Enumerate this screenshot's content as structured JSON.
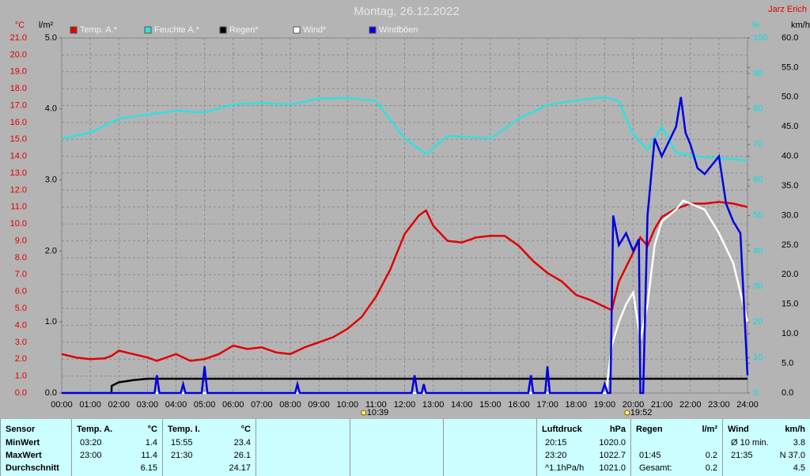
{
  "chart_data": {
    "type": "line",
    "title": "Montag, 26.12.2022",
    "author": "Jarz Erich",
    "xlim": [
      0,
      24
    ],
    "xticks": [
      {
        "value": 0,
        "label": "00:00"
      },
      {
        "value": 1,
        "label": "01:00"
      },
      {
        "value": 2,
        "label": "02:00"
      },
      {
        "value": 3,
        "label": "03:00"
      },
      {
        "value": 4,
        "label": "04:00"
      },
      {
        "value": 5,
        "label": "05:00"
      },
      {
        "value": 6,
        "label": "06:00"
      },
      {
        "value": 7,
        "label": "07:00"
      },
      {
        "value": 8,
        "label": "08:00"
      },
      {
        "value": 9,
        "label": "09:00"
      },
      {
        "value": 10,
        "label": "10:00"
      },
      {
        "value": 11,
        "label": "11:00"
      },
      {
        "value": 12,
        "label": "12:00"
      },
      {
        "value": 13,
        "label": "13:00"
      },
      {
        "value": 14,
        "label": "14:00"
      },
      {
        "value": 15,
        "label": "15:00"
      },
      {
        "value": 16,
        "label": "16:00"
      },
      {
        "value": 17,
        "label": "17:00"
      },
      {
        "value": 18,
        "label": "18:00"
      },
      {
        "value": 19,
        "label": "19:00"
      },
      {
        "value": 20,
        "label": "20:00"
      },
      {
        "value": 21,
        "label": "21:00"
      },
      {
        "value": 22,
        "label": "22:00"
      },
      {
        "value": 23,
        "label": "23:00"
      },
      {
        "value": 24,
        "label": "24:00"
      }
    ],
    "grid": true,
    "sun_events": [
      {
        "x": 10.65,
        "label": "10:39"
      },
      {
        "x": 19.87,
        "label": "19:52"
      }
    ],
    "axes": [
      {
        "label": "°C",
        "color": "#e00000",
        "lim": [
          0,
          21
        ],
        "ticks": [
          {
            "value": 0,
            "label": "0.0"
          },
          {
            "value": 1,
            "label": "1.0"
          },
          {
            "value": 2,
            "label": "2.0"
          },
          {
            "value": 3,
            "label": "3.0"
          },
          {
            "value": 4,
            "label": "4.0"
          },
          {
            "value": 5,
            "label": "5.0"
          },
          {
            "value": 6,
            "label": "6.0"
          },
          {
            "value": 7,
            "label": "7.0"
          },
          {
            "value": 8,
            "label": "8.0"
          },
          {
            "value": 9,
            "label": "9.0"
          },
          {
            "value": 10,
            "label": "10.0"
          },
          {
            "value": 11,
            "label": "11.0"
          },
          {
            "value": 12,
            "label": "12.0"
          },
          {
            "value": 13,
            "label": "13.0"
          },
          {
            "value": 14,
            "label": "14.0"
          },
          {
            "value": 15,
            "label": "15.0"
          },
          {
            "value": 16,
            "label": "16.0"
          },
          {
            "value": 17,
            "label": "17.0"
          },
          {
            "value": 18,
            "label": "18.0"
          },
          {
            "value": 19,
            "label": "19.0"
          },
          {
            "value": 20,
            "label": "20.0"
          },
          {
            "value": 21,
            "label": "21.0"
          }
        ]
      },
      {
        "label": "l/m²",
        "color": "#000000",
        "lim": [
          0,
          5
        ],
        "ticks": [
          {
            "value": 0,
            "label": "0.0"
          },
          {
            "value": 1,
            "label": "1.0"
          },
          {
            "value": 2,
            "label": "2.0"
          },
          {
            "value": 3,
            "label": "3.0"
          },
          {
            "value": 4,
            "label": "4.0"
          },
          {
            "value": 5,
            "label": "5.0"
          }
        ]
      },
      {
        "label": "%",
        "color": "#00e0e0",
        "lim": [
          0,
          100
        ],
        "ticks": [
          0,
          10,
          20,
          30,
          40,
          50,
          60,
          70,
          80,
          90,
          100
        ]
      },
      {
        "label": "km/h",
        "color": "#000000",
        "lim": [
          0,
          60
        ],
        "ticks": [
          {
            "value": 0,
            "label": "0.0"
          },
          {
            "value": 5,
            "label": "5.0"
          },
          {
            "value": 10,
            "label": "10.0"
          },
          {
            "value": 15,
            "label": "15.0"
          },
          {
            "value": 20,
            "label": "20.0"
          },
          {
            "value": 25,
            "label": "25.0"
          },
          {
            "value": 30,
            "label": "30.0"
          },
          {
            "value": 35,
            "label": "35.0"
          },
          {
            "value": 40,
            "label": "40.0"
          },
          {
            "value": 45,
            "label": "45.0"
          },
          {
            "value": 50,
            "label": "50.0"
          },
          {
            "value": 55,
            "label": "55.0"
          },
          {
            "value": 60,
            "label": "60.0"
          }
        ]
      }
    ],
    "series": [
      {
        "name": "Temp. A.*",
        "color": "#e00000",
        "axis": 0,
        "x": [
          0,
          0.5,
          1,
          1.5,
          1.75,
          2,
          2.5,
          3,
          3.33,
          4,
          4.5,
          5,
          5.5,
          6,
          6.5,
          7,
          7.5,
          8,
          8.5,
          9,
          9.5,
          10,
          10.5,
          11,
          11.5,
          12,
          12.5,
          12.75,
          13,
          13.5,
          14,
          14.5,
          15,
          15.5,
          16,
          16.5,
          17,
          17.5,
          18,
          18.5,
          19,
          19.25,
          19.5,
          20,
          20.25,
          20.5,
          20.75,
          21,
          21.5,
          22,
          22.5,
          23,
          23.5,
          24
        ],
        "values": [
          2.3,
          2.1,
          2.0,
          2.05,
          2.2,
          2.5,
          2.3,
          2.1,
          1.9,
          2.3,
          1.9,
          2.0,
          2.3,
          2.8,
          2.6,
          2.7,
          2.4,
          2.3,
          2.7,
          3.0,
          3.3,
          3.8,
          4.5,
          5.7,
          7.3,
          9.4,
          10.5,
          10.8,
          9.9,
          9.0,
          8.9,
          9.2,
          9.3,
          9.3,
          8.7,
          7.8,
          7.1,
          6.6,
          5.8,
          5.5,
          5.1,
          4.9,
          6.6,
          8.3,
          9.2,
          8.7,
          9.7,
          10.4,
          10.9,
          11.2,
          11.2,
          11.3,
          11.2,
          11.0
        ]
      },
      {
        "name": "Feuchte A.*",
        "color": "#30e0e0",
        "axis": 2,
        "x": [
          0,
          1,
          2,
          3,
          4,
          5,
          6,
          7,
          8,
          9,
          10,
          11,
          12,
          12.75,
          13.5,
          15,
          16,
          17,
          18,
          19,
          19.5,
          20,
          20.5,
          21,
          21.5,
          22,
          23,
          24
        ],
        "values": [
          71.7,
          73.3,
          77.3,
          78.4,
          79.5,
          79,
          81.3,
          81.7,
          81.3,
          82.9,
          83.1,
          82.2,
          71.7,
          67.3,
          72.4,
          71.7,
          77.3,
          81.1,
          82.4,
          83.3,
          82.2,
          72.8,
          68.4,
          75,
          67.7,
          66.8,
          66.1,
          65.5
        ]
      },
      {
        "name": "Regen*",
        "color": "#000000",
        "axis": 1,
        "x": [
          0,
          1.74,
          1.75,
          2,
          2.5,
          3,
          24
        ],
        "values": [
          0,
          0,
          0.1,
          0.15,
          0.18,
          0.2,
          0.2
        ]
      },
      {
        "name": "Wind*",
        "color": "#ffffff",
        "axis": 3,
        "x": [
          0,
          19.05,
          19.25,
          19.5,
          19.75,
          20,
          20.25,
          20.5,
          20.75,
          21,
          21.5,
          21.75,
          22,
          22.5,
          23,
          23.5,
          23.75,
          24
        ],
        "values": [
          0,
          0,
          8,
          12,
          15,
          17,
          9,
          15,
          25,
          29,
          31,
          32.5,
          32,
          31,
          27,
          22,
          17,
          12
        ]
      },
      {
        "name": "Windböen",
        "color": "#0000e0",
        "axis": 3,
        "x": [
          0,
          3.25,
          3.33,
          3.42,
          4.17,
          4.25,
          4.33,
          4.9,
          5,
          5.1,
          8.17,
          8.25,
          8.33,
          12.25,
          12.35,
          12.45,
          12.6,
          12.67,
          12.75,
          16.33,
          16.42,
          16.5,
          16.92,
          17,
          17.08,
          18.9,
          19,
          19.1,
          19.2,
          19.3,
          19.5,
          19.75,
          20,
          20.2,
          20.25,
          20.35,
          20.5,
          20.75,
          21,
          21.5,
          21.67,
          21.83,
          22,
          22.25,
          22.5,
          23,
          23.25,
          23.5,
          23.75,
          24
        ],
        "values": [
          0,
          0,
          3,
          0,
          0,
          1.5,
          0,
          0,
          4.5,
          0,
          0,
          1.5,
          0,
          0,
          3,
          0,
          0,
          1.5,
          0,
          0,
          3,
          0,
          0,
          4.5,
          0,
          0,
          1.5,
          0,
          0,
          30,
          25,
          27,
          24,
          26,
          0,
          0,
          30,
          43,
          40,
          45,
          50,
          44,
          42,
          38,
          37,
          40,
          32,
          29,
          27,
          3
        ]
      }
    ]
  },
  "table": {
    "columns": [
      {
        "header": "Sensor",
        "rows": [
          "MinWert",
          "MaxWert",
          "Durchschnitt"
        ]
      },
      {
        "header": "Temp. A.",
        "unit": "°C",
        "rows": [
          [
            "03:20",
            "1.4"
          ],
          [
            "23:00",
            "11.4"
          ],
          [
            null,
            "6.15"
          ]
        ]
      },
      {
        "header": "Temp. I.",
        "unit": "°C",
        "rows": [
          [
            "15:55",
            "23.4"
          ],
          [
            "21:30",
            "26.1"
          ],
          [
            null,
            "24.17"
          ]
        ]
      },
      {
        "header": "Luftdruck",
        "unit": "hPa",
        "rows": [
          [
            "20:15",
            "1020.0"
          ],
          [
            "23:20",
            "1022.7"
          ],
          [
            "^1.1hPa/h",
            "1021.0"
          ]
        ]
      },
      {
        "header": "Regen",
        "unit": "l/m²",
        "rows": [
          [
            null,
            null
          ],
          [
            "01:45",
            "0.2"
          ],
          [
            "Gesamt:",
            "0.2"
          ]
        ]
      },
      {
        "header": "Wind",
        "unit": "km/h",
        "rows": [
          [
            "Ø 10 min.",
            "3.8"
          ],
          [
            "21:35",
            "N 37.0"
          ],
          [
            null,
            "4.5"
          ]
        ]
      }
    ]
  }
}
